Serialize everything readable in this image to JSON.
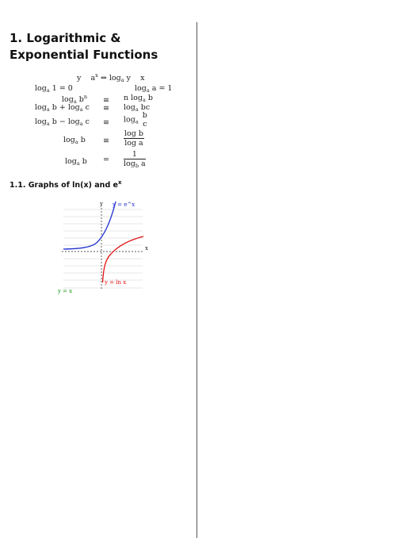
{
  "section": {
    "title": "1. Logarithmic & Exponential Functions"
  },
  "formulas": {
    "definition": {
      "left": "y",
      "eq": "a",
      "exp": "x",
      "arrow": "⇔",
      "right_log": "log",
      "right_base": "a",
      "right_arg": "y",
      "right_x": "x"
    },
    "rows": [
      {
        "lhs": "log",
        "lhs_base": "a",
        "lhs_rest": " 1 = 0",
        "rhs": "log",
        "rhs_base": "a",
        "rhs_rest": " a = 1"
      },
      {
        "lhs": "log",
        "lhs_base": "a",
        "lhs_rest": " b",
        "lhs_exp": "n",
        "op": "≡",
        "rhs": "n log",
        "rhs_base": "a",
        "rhs_rest": " b"
      },
      {
        "lhs": "log",
        "lhs_base": "a",
        "lhs_rest": " b + log",
        "lhs_base2": "a",
        "lhs_rest2": " c",
        "op": "≡",
        "rhs": "log",
        "rhs_base": "a",
        "rhs_rest": " bc"
      },
      {
        "lhs": "log",
        "lhs_base": "a",
        "lhs_rest": " b − log",
        "lhs_base2": "a",
        "lhs_rest2": " c",
        "op": "≡",
        "rhs": "log",
        "rhs_base": "a",
        "rhs_num": "b",
        "rhs_den": "c"
      },
      {
        "lhs": "log",
        "lhs_base": "a",
        "lhs_rest": " b",
        "op": "≡",
        "rhs_num": "log b",
        "rhs_den": "log a"
      },
      {
        "lhs": "log",
        "lhs_base": "a",
        "lhs_rest": " b",
        "op": "=",
        "rhs_num": "1",
        "rhs_den": "log",
        "rhs_den_base": "b",
        "rhs_den_rest": " a"
      }
    ]
  },
  "subsection": {
    "title": "1.1. Graphs of ln(x) and e",
    "title_sup": "x"
  },
  "graph": {
    "axis_x_label": "x",
    "axis_y_label": "y",
    "exp_label": "y = e^x",
    "ln_label": "y = ln x",
    "identity_label": "y = x",
    "exp_color": "#1f2fd0",
    "ln_color": "#e01010",
    "identity_color": "#1a9a1a"
  }
}
